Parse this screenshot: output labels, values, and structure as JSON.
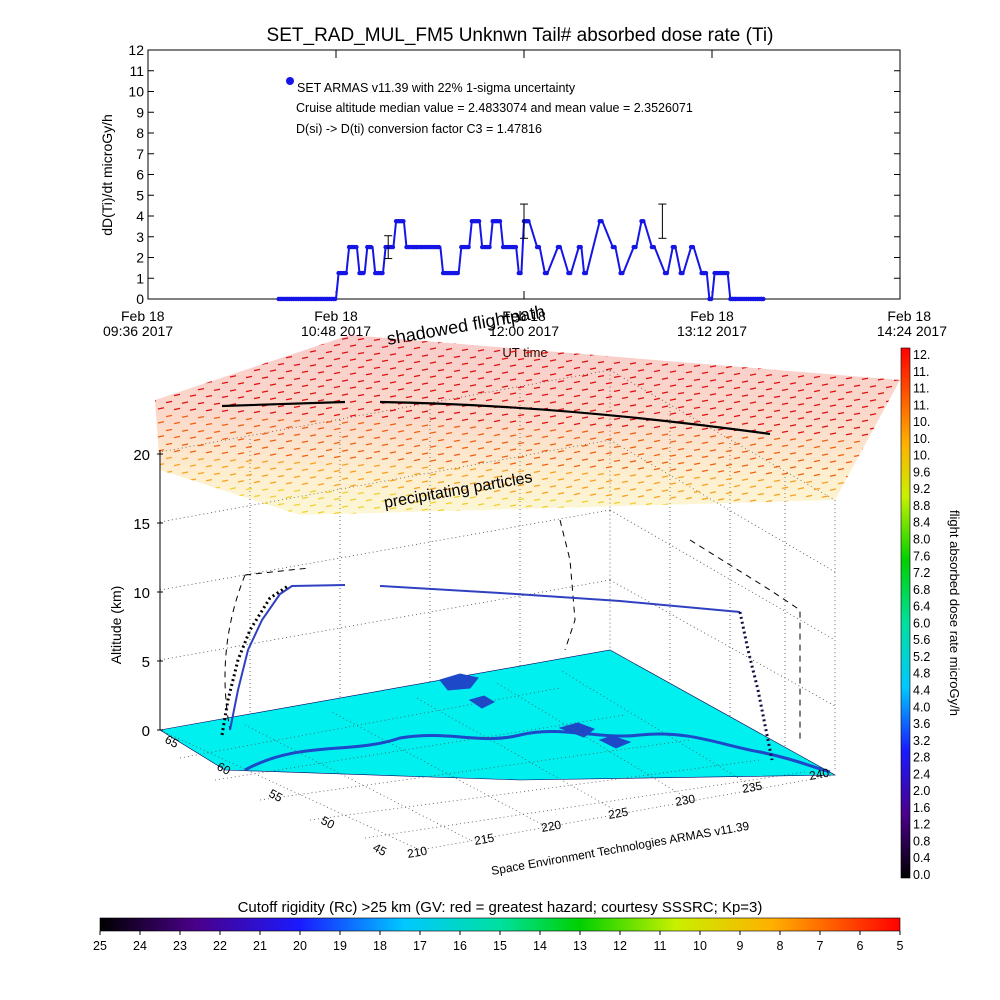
{
  "title": "SET_RAD_MUL_FM5 Unknwn Tail#  absorbed dose rate (Ti)",
  "top_chart": {
    "ylabel": "dD(Ti)/dt microGy/h",
    "xlabel": "UT time",
    "legend": {
      "line1": "SET ARMAS v11.39 with 22% 1-sigma uncertainty",
      "line2": "Cruise altitude median value = 2.4833074 and mean value = 2.3526071",
      "line3": "D(si) -> D(ti) conversion factor C3 = 1.47816"
    },
    "series_color": "#1515e6"
  },
  "chart_data": [
    {
      "type": "line",
      "title": "SET_RAD_MUL_FM5 Unknwn Tail#  absorbed dose rate (Ti)",
      "xlabel": "UT time",
      "ylabel": "dD(Ti)/dt microGy/h",
      "ylim": [
        0,
        12
      ],
      "yticks": [
        0,
        1,
        2,
        3,
        4,
        5,
        6,
        7,
        8,
        9,
        10,
        11,
        12
      ],
      "xlim_minutes": [
        576,
        864
      ],
      "xticks": [
        {
          "minute": 576,
          "line1": "Feb 18",
          "line2": "09:36 2017"
        },
        {
          "minute": 648,
          "line1": "Feb 18",
          "line2": "10:48 2017"
        },
        {
          "minute": 720,
          "line1": "Feb 18",
          "line2": "12:00 2017"
        },
        {
          "minute": 792,
          "line1": "Feb 18",
          "line2": "13:12 2017"
        },
        {
          "minute": 864,
          "line1": "Feb 18",
          "line2": "14:24 2017"
        }
      ],
      "series": [
        {
          "x_minutes": [
            626,
            648,
            649,
            652,
            653,
            656,
            657,
            659,
            660,
            662,
            663,
            666,
            667,
            670,
            671,
            674,
            675,
            678,
            679,
            688,
            689,
            695,
            696,
            699,
            700,
            703,
            704,
            707,
            708,
            711,
            712,
            717,
            718,
            719,
            720,
            721,
            722,
            725,
            726,
            728,
            729,
            733,
            734,
            737,
            738,
            741,
            742,
            743,
            744,
            749,
            750,
            754,
            755,
            757,
            758,
            762,
            763,
            765,
            766,
            769,
            770,
            774,
            775,
            777,
            778,
            780,
            781,
            784,
            785,
            788,
            789,
            790,
            791,
            792,
            793,
            798,
            799,
            800,
            801,
            811,
            812
          ],
          "values": [
            0,
            0,
            1.25,
            1.25,
            2.5,
            2.5,
            1.25,
            1.25,
            2.5,
            2.5,
            1.25,
            1.25,
            2.5,
            2.5,
            3.75,
            3.75,
            2.5,
            2.5,
            2.5,
            2.5,
            1.25,
            1.25,
            2.5,
            2.5,
            3.75,
            3.75,
            2.5,
            2.5,
            3.75,
            3.75,
            2.5,
            2.5,
            1.25,
            1.25,
            3.75,
            3.75,
            3.75,
            2.5,
            2.5,
            1.25,
            1.25,
            2.5,
            2.5,
            1.25,
            1.25,
            2.5,
            2.5,
            1.25,
            1.25,
            3.75,
            3.75,
            2.5,
            2.5,
            1.25,
            1.25,
            2.5,
            2.5,
            3.75,
            3.75,
            2.5,
            2.5,
            1.25,
            1.25,
            2.5,
            2.5,
            1.25,
            1.25,
            2.5,
            2.5,
            1.25,
            1.25,
            1.25,
            0,
            0,
            1.25,
            1.25,
            0,
            0,
            0,
            0,
            0
          ]
        }
      ],
      "error_bars": [
        {
          "minute": 668,
          "value": 2.5
        },
        {
          "minute": 720,
          "value": 3.75
        },
        {
          "minute": 773,
          "value": 3.75
        }
      ]
    },
    {
      "type": "heatmap",
      "ylabel": "Altitude (km)",
      "zticks": [
        0,
        5,
        10,
        15,
        20
      ],
      "lon_ticks": [
        210,
        215,
        220,
        225,
        230,
        235,
        240
      ],
      "lat_ticks": [
        45,
        50,
        55,
        60,
        65
      ],
      "footer": "Space Environment Technologies ARMAS v11.39",
      "annotations": [
        "shadowed flightpath",
        "precipitating particles"
      ],
      "colorbar_right": {
        "label": "flight absorbed dose rate microGy/h",
        "ticks": [
          "12.",
          "11.",
          "11.",
          "11.",
          "10.",
          "10.",
          "10.",
          "9.6",
          "9.2",
          "8.8",
          "8.4",
          "8.0",
          "7.6",
          "7.2",
          "6.8",
          "6.4",
          "6.0",
          "5.6",
          "5.2",
          "4.8",
          "4.4",
          "4.0",
          "3.6",
          "3.2",
          "2.8",
          "2.4",
          "2.0",
          "1.6",
          "1.2",
          "0.8",
          "0.4",
          "0.0"
        ]
      },
      "colorbar_bottom": {
        "label": "Cutoff rigidity (Rc) >25 km (GV: red = greatest hazard; courtesy SSSRC; Kp=3)",
        "ticks": [
          "25",
          "24",
          "23",
          "22",
          "21",
          "20",
          "19",
          "18",
          "17",
          "16",
          "15",
          "14",
          "13",
          "12",
          "11",
          "10",
          "9",
          "8",
          "7",
          "6",
          "5"
        ]
      }
    }
  ],
  "colors": {
    "ground": "#00f0f0",
    "land": "#1d49c9",
    "flight_path": "#3040c0",
    "shadow_path": "#000000"
  }
}
